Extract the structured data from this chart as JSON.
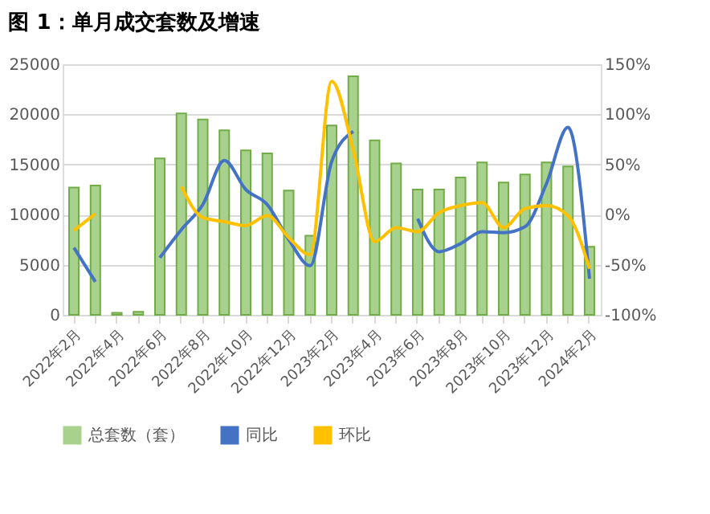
{
  "chart_data": {
    "type": "bar",
    "title": "图 1：单月成交套数及增速",
    "categories": [
      "2022年2月",
      null,
      "2022年4月",
      null,
      "2022年6月",
      null,
      "2022年8月",
      null,
      "2022年10月",
      null,
      "2022年12月",
      null,
      "2023年2月",
      null,
      "2023年4月",
      null,
      "2023年6月",
      null,
      "2023年8月",
      null,
      "2023年10月",
      null,
      "2023年12月",
      null,
      "2024年2月"
    ],
    "series": [
      {
        "name": "总套数（套）",
        "color": "#a9d18e",
        "values": [
          12700,
          12900,
          200,
          300,
          15600,
          20100,
          19500,
          18400,
          16400,
          16100,
          12400,
          7900,
          18900,
          23800,
          17400,
          15100,
          12500,
          12500,
          13700,
          15200,
          13200,
          14000,
          15200,
          14800,
          6800
        ]
      },
      {
        "name": "同比",
        "type": "line",
        "axis": "y2",
        "color": "#4472c4",
        "values": [
          -33,
          -67,
          null,
          null,
          -43,
          -15,
          10,
          54,
          25,
          10,
          -25,
          -51,
          53,
          83,
          null,
          null,
          -4,
          -37,
          -29,
          -17,
          -18,
          -12,
          31,
          87,
          -64
        ]
      },
      {
        "name": "环比",
        "type": "line",
        "axis": "y2",
        "color": "#ffc000",
        "values": [
          -16,
          1,
          null,
          null,
          null,
          28,
          -3,
          -7,
          -11,
          -1,
          -23,
          -40,
          133,
          65,
          -27,
          -13,
          -17,
          2,
          9,
          12,
          -13,
          6,
          9,
          -1,
          -54
        ]
      }
    ],
    "ylim": [
      0,
      25000
    ],
    "yticks": [
      0,
      5000,
      10000,
      15000,
      20000,
      25000
    ],
    "y2lim": [
      -100,
      150
    ],
    "y2ticks": [
      {
        "value": -100,
        "label": "-100%"
      },
      {
        "value": -50,
        "label": "-50%"
      },
      {
        "value": 0,
        "label": "0%"
      },
      {
        "value": 50,
        "label": "50%"
      },
      {
        "value": 100,
        "label": "100%"
      },
      {
        "value": 150,
        "label": "150%"
      }
    ],
    "grid": "y",
    "legend": "bottom"
  }
}
